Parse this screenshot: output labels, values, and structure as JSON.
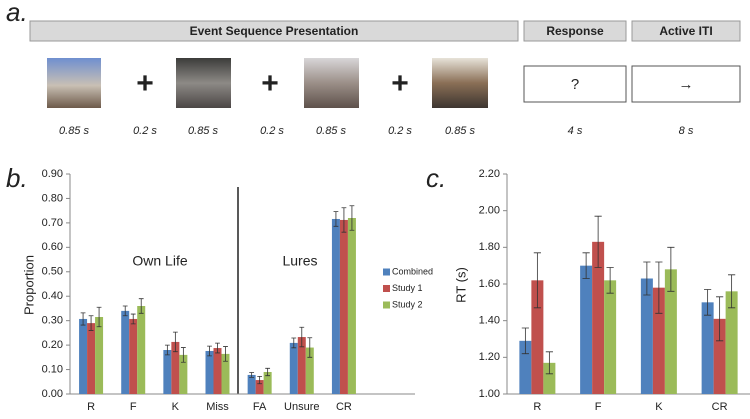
{
  "sequence": {
    "panel_label": "a.",
    "headers": [
      "Event Sequence Presentation",
      "Response",
      "Active ITI"
    ],
    "fixations": [
      "+",
      "+",
      "+"
    ],
    "response_symbol": "?",
    "iti_symbol": "→",
    "durations": [
      "0.85 s",
      "0.2 s",
      "0.85 s",
      "0.2 s",
      "0.85 s",
      "0.2 s",
      "0.85 s",
      "4 s",
      "8 s"
    ]
  },
  "chart_data": [
    {
      "type": "bar",
      "panel_label": "b.",
      "y_label": "Proportion",
      "categories": [
        "R",
        "F",
        "K",
        "Miss",
        "FA",
        "Unsure",
        "CR"
      ],
      "annotations": [
        "Own Life",
        "Lures"
      ],
      "series": [
        {
          "name": "Combined",
          "color": "#4f81bd",
          "values": [
            0.307,
            0.34,
            0.18,
            0.176,
            0.078,
            0.209,
            0.716
          ],
          "errors": [
            0.025,
            0.02,
            0.02,
            0.02,
            0.01,
            0.02,
            0.03
          ]
        },
        {
          "name": "Study 1",
          "color": "#c0504d",
          "values": [
            0.29,
            0.307,
            0.213,
            0.188,
            0.057,
            0.233,
            0.712
          ],
          "errors": [
            0.03,
            0.02,
            0.04,
            0.02,
            0.015,
            0.04,
            0.05
          ]
        },
        {
          "name": "Study 2",
          "color": "#9bbb59",
          "values": [
            0.315,
            0.36,
            0.16,
            0.164,
            0.09,
            0.19,
            0.72
          ],
          "errors": [
            0.04,
            0.03,
            0.03,
            0.03,
            0.015,
            0.04,
            0.05
          ]
        }
      ],
      "ylim": [
        0,
        0.9
      ],
      "yticks": [
        {
          "value": 0,
          "label": "0.00"
        },
        {
          "value": 0.1,
          "label": "0.10"
        },
        {
          "value": 0.2,
          "label": "0.20"
        },
        {
          "value": 0.3,
          "label": "0.30"
        },
        {
          "value": 0.4,
          "label": "0.40"
        },
        {
          "value": 0.5,
          "label": "0.50"
        },
        {
          "value": 0.6,
          "label": "0.60"
        },
        {
          "value": 0.7,
          "label": "0.70"
        },
        {
          "value": 0.8,
          "label": "0.80"
        },
        {
          "value": 0.9,
          "label": "0.90"
        }
      ],
      "legend": "right"
    },
    {
      "type": "bar",
      "panel_label": "c.",
      "y_label": "RT (s)",
      "categories": [
        "R",
        "F",
        "K",
        "CR"
      ],
      "series": [
        {
          "color": "#4f81bd",
          "values": [
            1.29,
            1.7,
            1.63,
            1.5
          ],
          "errors": [
            0.07,
            0.07,
            0.09,
            0.07
          ]
        },
        {
          "color": "#c0504d",
          "values": [
            1.62,
            1.83,
            1.58,
            1.41
          ],
          "errors": [
            0.15,
            0.14,
            0.14,
            0.12
          ]
        },
        {
          "color": "#9bbb59",
          "values": [
            1.17,
            1.62,
            1.68,
            1.56
          ],
          "errors": [
            0.06,
            0.07,
            0.12,
            0.09
          ]
        }
      ],
      "ylim": [
        1,
        2.2
      ],
      "yticks": [
        {
          "value": 1,
          "label": "1.00"
        },
        {
          "value": 1.2,
          "label": "1.20"
        },
        {
          "value": 1.4,
          "label": "1.40"
        },
        {
          "value": 1.6,
          "label": "1.60"
        },
        {
          "value": 1.8,
          "label": "1.80"
        },
        {
          "value": 2,
          "label": "2.00"
        },
        {
          "value": 2.2,
          "label": "2.20"
        }
      ]
    }
  ]
}
